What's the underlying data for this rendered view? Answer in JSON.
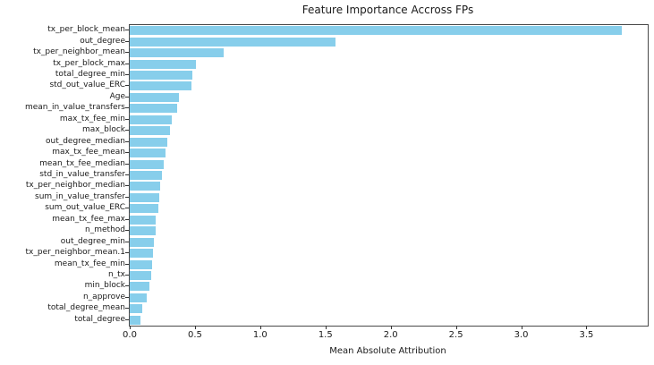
{
  "chart_data": {
    "type": "bar",
    "orientation": "horizontal",
    "title": "Feature Importance Accross FPs",
    "xlabel": "Mean Absolute Attribution",
    "ylabel": "",
    "categories": [
      "tx_per_block_mean",
      "out_degree",
      "tx_per_neighbor_mean",
      "tx_per_block_max",
      "total_degree_min",
      "std_out_value_ERC",
      "Age",
      "mean_in_value_transfers",
      "max_tx_fee_min",
      "max_block",
      "out_degree_median",
      "max_tx_fee_mean",
      "mean_tx_fee_median",
      "std_in_value_transfer",
      "tx_per_neighbor_median",
      "sum_in_value_transfer",
      "sum_out_value_ERC",
      "mean_tx_fee_max",
      "n_method",
      "out_degree_min",
      "tx_per_neighbor_mean.1",
      "mean_tx_fee_min",
      "n_tx",
      "min_block",
      "n_approve",
      "total_degree_mean",
      "total_degree"
    ],
    "values": [
      3.77,
      1.58,
      0.72,
      0.51,
      0.48,
      0.47,
      0.38,
      0.36,
      0.32,
      0.31,
      0.29,
      0.275,
      0.26,
      0.245,
      0.235,
      0.228,
      0.22,
      0.2,
      0.197,
      0.185,
      0.178,
      0.172,
      0.163,
      0.15,
      0.132,
      0.098,
      0.084
    ],
    "xlim": [
      0,
      3.97
    ],
    "xticks": [
      0.0,
      0.5,
      1.0,
      1.5,
      2.0,
      2.5,
      3.0,
      3.5
    ],
    "xtick_labels": [
      "0.0",
      "0.5",
      "1.0",
      "1.5",
      "2.0",
      "2.5",
      "3.0",
      "3.5"
    ],
    "bar_color": "#87CEEB",
    "grid": false,
    "legend_position": "none"
  }
}
